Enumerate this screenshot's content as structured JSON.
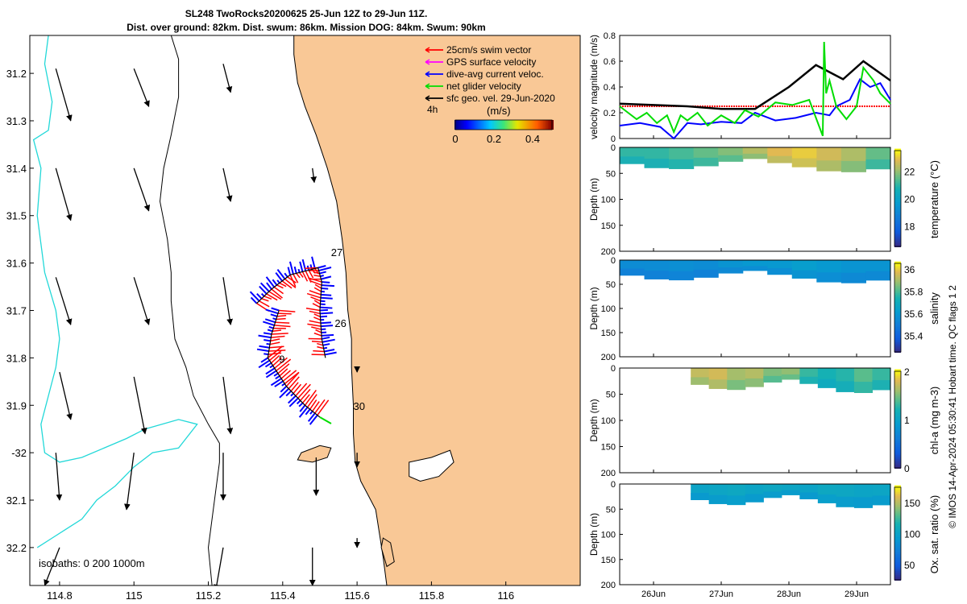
{
  "header": {
    "line1": "SL248 TwoRocks20200625 25-Jun 12Z to 29-Jun 11Z.",
    "line2": "Dist. over ground: 82km. Dist. swum: 86km. Mission DOG: 84km. Swum: 90km"
  },
  "colors": {
    "land": "#f9c896",
    "coast": "#000000",
    "isobath_cyan": "#22d8d8",
    "swim": "#ff0000",
    "gps": "#ff00ff",
    "dive_avg": "#0000ff",
    "net": "#00dd00",
    "sfc_geo": "#000000"
  },
  "chart_data": [
    {
      "id": "map",
      "type": "scatter",
      "xlabel": "",
      "ylabel": "",
      "xlim": [
        114.72,
        116.2
      ],
      "ylim": [
        -32.28,
        -31.12
      ],
      "xticks": [
        114.8,
        115,
        115.2,
        115.4,
        115.6,
        115.8,
        116
      ],
      "xtick_labels": [
        "114.8",
        "115",
        "115.2",
        "115.4",
        "115.6",
        "115.8",
        "116"
      ],
      "yticks": [
        -31.2,
        -31.3,
        -31.4,
        -31.5,
        -31.6,
        -31.7,
        -31.8,
        -31.9,
        -32,
        -32.1,
        -32.2
      ],
      "ytick_labels": [
        "31.2",
        "31.3",
        "31.4",
        "31.5",
        "31.6",
        "31.7",
        "31.8",
        "31.9",
        "-32",
        "32.1",
        "32.2"
      ],
      "legend": [
        {
          "label": "25cm/s swim vector",
          "color": "#ff0000"
        },
        {
          "label": "GPS surface velocity",
          "color": "#ff00ff"
        },
        {
          "label": "dive-avg current veloc.",
          "color": "#0000ff"
        },
        {
          "label": "net glider velocity",
          "color": "#00dd00"
        },
        {
          "label": "sfc geo. vel. 29-Jun-2020",
          "color": "#000000"
        }
      ],
      "legend_extra": "4h",
      "colorbar": {
        "title": "(m/s)",
        "ticks": [
          0,
          0.2,
          0.4
        ],
        "tick_labels": [
          "0",
          "0.2",
          "0.4"
        ],
        "range": [
          0,
          0.5
        ]
      },
      "isobath_note": "isobaths: 0   200  1000m",
      "day_labels": [
        {
          "text": "27",
          "lon": 115.53,
          "lat": -31.585
        },
        {
          "text": "26",
          "lon": 115.54,
          "lat": -31.735
        },
        {
          "text": "9",
          "lon": 115.39,
          "lat": -31.81
        },
        {
          "text": "30",
          "lon": 115.59,
          "lat": -31.91
        }
      ],
      "track": [
        [
          115.33,
          -31.685
        ],
        [
          115.37,
          -31.655
        ],
        [
          115.42,
          -31.625
        ],
        [
          115.495,
          -31.61
        ],
        [
          115.505,
          -31.64
        ],
        [
          115.5,
          -31.7
        ],
        [
          115.505,
          -31.76
        ],
        [
          115.515,
          -31.8
        ]
      ],
      "track2": [
        [
          115.39,
          -31.7
        ],
        [
          115.37,
          -31.75
        ],
        [
          115.36,
          -31.8
        ],
        [
          115.41,
          -31.86
        ],
        [
          115.46,
          -31.9
        ],
        [
          115.5,
          -31.925
        ]
      ],
      "coast": [
        [
          115.43,
          -31.12
        ],
        [
          115.43,
          -31.16
        ],
        [
          115.44,
          -31.22
        ],
        [
          115.46,
          -31.27
        ],
        [
          115.49,
          -31.33
        ],
        [
          115.52,
          -31.4
        ],
        [
          115.545,
          -31.47
        ],
        [
          115.56,
          -31.55
        ],
        [
          115.57,
          -31.62
        ],
        [
          115.575,
          -31.7
        ],
        [
          115.585,
          -31.76
        ],
        [
          115.585,
          -31.82
        ],
        [
          115.59,
          -31.9
        ],
        [
          115.59,
          -31.96
        ],
        [
          115.595,
          -32.02
        ],
        [
          115.61,
          -32.06
        ],
        [
          115.63,
          -32.09
        ],
        [
          115.65,
          -32.12
        ],
        [
          115.66,
          -32.17
        ],
        [
          115.67,
          -32.22
        ],
        [
          115.68,
          -32.28
        ]
      ],
      "isobath_200": [
        [
          115.1,
          -31.12
        ],
        [
          115.12,
          -31.17
        ],
        [
          115.12,
          -31.25
        ],
        [
          115.1,
          -31.33
        ],
        [
          115.08,
          -31.4
        ],
        [
          115.07,
          -31.47
        ],
        [
          115.09,
          -31.55
        ],
        [
          115.1,
          -31.62
        ],
        [
          115.1,
          -31.68
        ],
        [
          115.11,
          -31.76
        ],
        [
          115.14,
          -31.82
        ],
        [
          115.16,
          -31.88
        ],
        [
          115.2,
          -31.94
        ],
        [
          115.23,
          -31.98
        ],
        [
          115.23,
          -32.02
        ],
        [
          115.22,
          -32.08
        ],
        [
          115.21,
          -32.14
        ],
        [
          115.2,
          -32.2
        ],
        [
          115.21,
          -32.28
        ]
      ],
      "isobath_1000": [
        [
          114.77,
          -31.12
        ],
        [
          114.76,
          -31.18
        ],
        [
          114.78,
          -31.26
        ],
        [
          114.77,
          -31.32
        ],
        [
          114.73,
          -31.34
        ],
        [
          114.75,
          -31.4
        ],
        [
          114.74,
          -31.5
        ],
        [
          114.75,
          -31.56
        ],
        [
          114.76,
          -31.62
        ],
        [
          114.79,
          -31.7
        ],
        [
          114.8,
          -31.76
        ],
        [
          114.79,
          -31.82
        ],
        [
          114.77,
          -31.88
        ],
        [
          114.75,
          -31.94
        ],
        [
          114.76,
          -32.0
        ],
        [
          114.8,
          -32.02
        ],
        [
          114.86,
          -32.01
        ],
        [
          114.92,
          -31.99
        ],
        [
          114.98,
          -31.97
        ],
        [
          115.03,
          -31.95
        ],
        [
          115.12,
          -31.93
        ],
        [
          115.17,
          -31.94
        ],
        [
          115.12,
          -31.99
        ],
        [
          115.05,
          -32.0
        ],
        [
          115.0,
          -32.03
        ],
        [
          114.95,
          -32.07
        ],
        [
          114.9,
          -32.1
        ],
        [
          114.86,
          -32.14
        ],
        [
          114.82,
          -32.16
        ],
        [
          114.78,
          -32.18
        ],
        [
          114.74,
          -32.2
        ]
      ],
      "sfc_arrows": [
        {
          "lon": 114.79,
          "lat": -31.19,
          "dlon": 0.04,
          "dlat": -0.11
        },
        {
          "lon": 115.0,
          "lat": -31.19,
          "dlon": 0.04,
          "dlat": -0.08
        },
        {
          "lon": 115.24,
          "lat": -31.18,
          "dlon": 0.02,
          "dlat": -0.06
        },
        {
          "lon": 114.79,
          "lat": -31.4,
          "dlon": 0.04,
          "dlat": -0.11
        },
        {
          "lon": 115.0,
          "lat": -31.4,
          "dlon": 0.04,
          "dlat": -0.09
        },
        {
          "lon": 115.24,
          "lat": -31.4,
          "dlon": 0.02,
          "dlat": -0.07
        },
        {
          "lon": 115.48,
          "lat": -31.4,
          "dlon": 0.005,
          "dlat": -0.03
        },
        {
          "lon": 114.79,
          "lat": -31.63,
          "dlon": 0.04,
          "dlat": -0.1
        },
        {
          "lon": 115.0,
          "lat": -31.63,
          "dlon": 0.04,
          "dlat": -0.1
        },
        {
          "lon": 115.24,
          "lat": -31.63,
          "dlon": 0.02,
          "dlat": -0.1
        },
        {
          "lon": 114.8,
          "lat": -31.83,
          "dlon": 0.03,
          "dlat": -0.1
        },
        {
          "lon": 115.0,
          "lat": -31.84,
          "dlon": 0.03,
          "dlat": -0.12
        },
        {
          "lon": 115.24,
          "lat": -31.84,
          "dlon": 0.02,
          "dlat": -0.12
        },
        {
          "lon": 115.6,
          "lat": -31.82,
          "dlon": 0.0,
          "dlat": -0.01
        },
        {
          "lon": 114.79,
          "lat": -32.0,
          "dlon": 0.01,
          "dlat": -0.1
        },
        {
          "lon": 115.0,
          "lat": -32.0,
          "dlon": -0.02,
          "dlat": -0.12
        },
        {
          "lon": 115.24,
          "lat": -32.0,
          "dlon": 0.0,
          "dlat": -0.1
        },
        {
          "lon": 115.49,
          "lat": -32.01,
          "dlon": 0.0,
          "dlat": -0.08
        },
        {
          "lon": 115.6,
          "lat": -32.0,
          "dlon": 0.0,
          "dlat": -0.03
        },
        {
          "lon": 114.8,
          "lat": -32.2,
          "dlon": -0.04,
          "dlat": -0.08
        },
        {
          "lon": 115.24,
          "lat": -32.2,
          "dlon": -0.02,
          "dlat": -0.09
        },
        {
          "lon": 115.48,
          "lat": -32.2,
          "dlon": 0.0,
          "dlat": -0.08
        },
        {
          "lon": 115.6,
          "lat": -32.18,
          "dlon": 0.0,
          "dlat": -0.02
        }
      ]
    },
    {
      "id": "velocity",
      "type": "line",
      "ylabel": "velocity magnitude (m/s)",
      "xlim": [
        0,
        4
      ],
      "ylim": [
        0,
        0.8
      ],
      "yticks": [
        0,
        0.2,
        0.4,
        0.6,
        0.8
      ],
      "series": [
        {
          "name": "25cm/s swim vector",
          "color": "#ff0000",
          "x": [
            0,
            4
          ],
          "y": [
            0.25,
            0.25
          ]
        },
        {
          "name": "black",
          "color": "#000000",
          "x": [
            0,
            0.5,
            1.0,
            1.5,
            2.0,
            2.5,
            2.9,
            3.3,
            3.6,
            4.0
          ],
          "y": [
            0.27,
            0.26,
            0.25,
            0.23,
            0.23,
            0.4,
            0.57,
            0.46,
            0.6,
            0.45
          ]
        },
        {
          "name": "dive-avg current veloc.",
          "color": "#0000ff",
          "x": [
            0,
            0.3,
            0.6,
            0.8,
            1.0,
            1.2,
            1.5,
            1.8,
            2.0,
            2.3,
            2.6,
            2.9,
            3.1,
            3.2,
            3.4,
            3.55,
            3.7,
            3.85,
            4.0
          ],
          "y": [
            0.1,
            0.12,
            0.09,
            0.0,
            0.12,
            0.11,
            0.13,
            0.12,
            0.2,
            0.14,
            0.16,
            0.2,
            0.18,
            0.25,
            0.3,
            0.46,
            0.4,
            0.43,
            0.3
          ]
        },
        {
          "name": "net glider velocity",
          "color": "#00dd00",
          "x": [
            0,
            0.25,
            0.4,
            0.55,
            0.7,
            0.8,
            0.9,
            1.0,
            1.15,
            1.3,
            1.5,
            1.7,
            1.85,
            2.05,
            2.3,
            2.55,
            2.8,
            3.0,
            3.02,
            3.05,
            3.1,
            3.2,
            3.35,
            3.5,
            3.6,
            3.75,
            3.85,
            4.0
          ],
          "y": [
            0.25,
            0.15,
            0.2,
            0.12,
            0.18,
            0.05,
            0.18,
            0.14,
            0.2,
            0.1,
            0.18,
            0.12,
            0.22,
            0.17,
            0.28,
            0.26,
            0.3,
            0.02,
            0.75,
            0.35,
            0.45,
            0.25,
            0.15,
            0.25,
            0.55,
            0.45,
            0.35,
            0.27
          ]
        }
      ]
    },
    {
      "id": "temperature",
      "type": "heatmap",
      "ylabel": "Depth (m)",
      "zlabel": "temperature (°C)",
      "yticks": [
        0,
        50,
        100,
        150,
        200
      ],
      "colorbar_ticks": [
        18,
        20,
        22
      ],
      "clim": [
        16.5,
        23.5
      ],
      "data_range_days": [
        0,
        4
      ],
      "values": [
        [
          21.0,
          21.0,
          21.2,
          21.5,
          21.8,
          22.3,
          22.8,
          23.0,
          22.6,
          22.2,
          21.5
        ]
      ]
    },
    {
      "id": "salinity",
      "type": "heatmap",
      "ylabel": "Depth (m)",
      "zlabel": "salinity",
      "yticks": [
        0,
        50,
        100,
        150,
        200
      ],
      "colorbar_ticks": [
        35.4,
        35.6,
        35.8,
        36
      ],
      "clim": [
        35.25,
        36.05
      ],
      "data_range_days": [
        0,
        4
      ],
      "values": [
        [
          35.55,
          35.55,
          35.56,
          35.55,
          35.58,
          35.6,
          35.6,
          35.62,
          35.6,
          35.58,
          35.58
        ]
      ]
    },
    {
      "id": "chla",
      "type": "heatmap",
      "ylabel": "Depth (m)",
      "zlabel": "chl-a (mg m-3)",
      "yticks": [
        0,
        50,
        100,
        150,
        200
      ],
      "colorbar_ticks": [
        0,
        1,
        2
      ],
      "clim": [
        0,
        2
      ],
      "data_range_days": [
        1.05,
        4
      ],
      "values": [
        [
          1.7,
          1.75,
          1.6,
          1.65,
          1.5,
          1.55,
          1.3,
          1.2,
          1.25,
          1.4,
          1.3
        ]
      ]
    },
    {
      "id": "oxygen",
      "type": "heatmap",
      "ylabel": "Depth (m)",
      "zlabel": "Ox. sat. ratio (%)",
      "yticks": [
        0,
        50,
        100,
        150,
        200
      ],
      "colorbar_ticks": [
        50,
        100,
        150
      ],
      "clim": [
        25,
        175
      ],
      "data_range_days": [
        1.05,
        4
      ],
      "values": [
        [
          100,
          102,
          104,
          101,
          103,
          102,
          100,
          104,
          103,
          101,
          102
        ]
      ]
    }
  ],
  "time_axis": {
    "xlim": [
      0,
      4
    ],
    "ticks": [
      0.5,
      1.5,
      2.5,
      3.5
    ],
    "tick_labels": [
      "26Jun",
      "27Jun",
      "28Jun",
      "29Jun"
    ]
  },
  "credit": "© IMOS 14-Apr-2024 05:30:41 Hobart time. QC flags 1  2"
}
